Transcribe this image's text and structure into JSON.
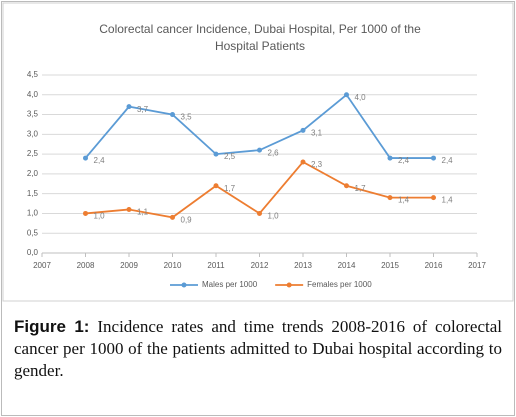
{
  "chart_data": {
    "type": "line",
    "title": [
      "Colorectal cancer Incidence, Dubai Hospital, Per 1000 of the",
      "Hospital Patients"
    ],
    "x": [
      2008,
      2009,
      2010,
      2011,
      2012,
      2013,
      2014,
      2015,
      2016
    ],
    "series": [
      {
        "name": "Males per 1000",
        "color": "#5b9bd5",
        "values": [
          2.4,
          3.7,
          3.5,
          2.5,
          2.6,
          3.1,
          4.0,
          2.4,
          2.4
        ],
        "value_labels": [
          "2,4",
          "3,7",
          "3,5",
          "2,5",
          "2,6",
          "3,1",
          "4,0",
          "2,4",
          "2,4"
        ]
      },
      {
        "name": "Females per 1000",
        "color": "#ed7d31",
        "values": [
          1.0,
          1.1,
          0.9,
          1.7,
          1.0,
          2.3,
          1.7,
          1.4,
          1.4
        ],
        "value_labels": [
          "1,0",
          "1,1",
          "0,9",
          "1,7",
          "1,0",
          "2,3",
          "1,7",
          "1,4",
          "1,4"
        ]
      }
    ],
    "xlim": [
      2007,
      2017
    ],
    "xticks": [
      2007,
      2008,
      2009,
      2010,
      2011,
      2012,
      2013,
      2014,
      2015,
      2016,
      2017
    ],
    "ylim": [
      0,
      4.5
    ],
    "yticks": [
      {
        "value": 0,
        "label": "0,0"
      },
      {
        "value": 0.5,
        "label": "0,5"
      },
      {
        "value": 1,
        "label": "1,0"
      },
      {
        "value": 1.5,
        "label": "1,5"
      },
      {
        "value": 2,
        "label": "2,0"
      },
      {
        "value": 2.5,
        "label": "2,5"
      },
      {
        "value": 3,
        "label": "3,0"
      },
      {
        "value": 3.5,
        "label": "3,5"
      },
      {
        "value": 4,
        "label": "4,0"
      },
      {
        "value": 4.5,
        "label": "4,5"
      }
    ],
    "grid": true,
    "legend": "bottom"
  },
  "caption": {
    "label": "Figure 1:",
    "text": "Incidence rates and time trends 2008-2016 of colorectal cancer per 1000 of the patients admitted to Dubai hospital according to gender."
  }
}
